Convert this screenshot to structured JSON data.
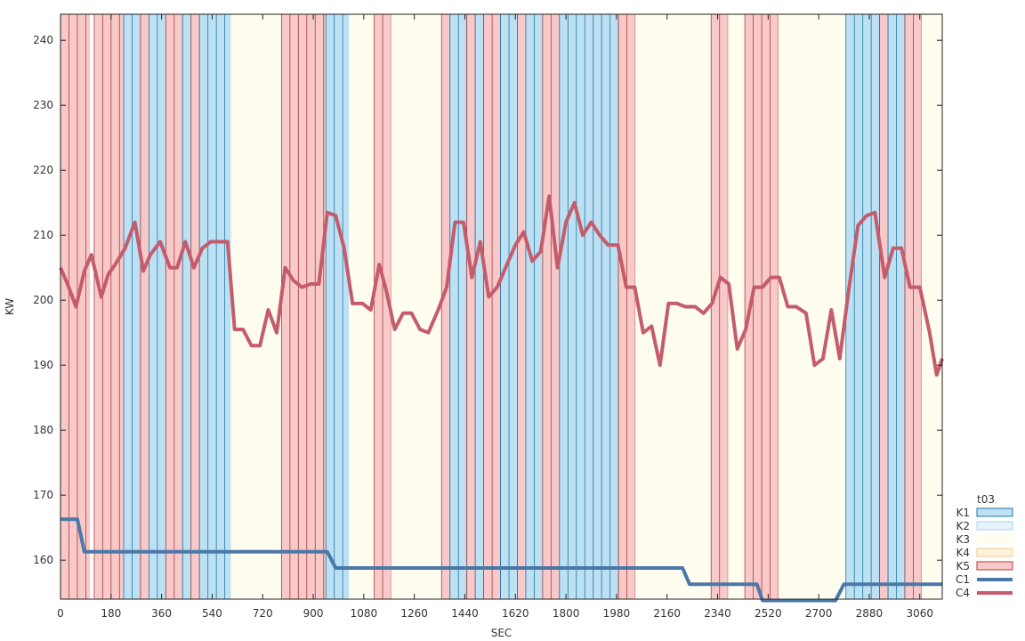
{
  "chart_data": {
    "type": "line",
    "xlabel": "SEC",
    "ylabel": "KW",
    "xlim": [
      0,
      3140
    ],
    "ylim": [
      154,
      244
    ],
    "x_ticks": [
      0,
      180,
      360,
      540,
      720,
      900,
      1080,
      1260,
      1440,
      1620,
      1800,
      1980,
      2160,
      2340,
      2520,
      2700,
      2880,
      3060
    ],
    "y_ticks": [
      160,
      170,
      180,
      190,
      200,
      210,
      220,
      230,
      240
    ],
    "grid": false,
    "legend": {
      "placement": "bottom-right",
      "title": "t03",
      "entries": [
        {
          "name": "K1",
          "kind": "box",
          "fill": "#bde0f2",
          "stroke": "#1e7aa8"
        },
        {
          "name": "K2",
          "kind": "box",
          "fill": "#e6f3fb",
          "stroke": "#a8d2ea"
        },
        {
          "name": "K3",
          "kind": "box",
          "fill": "#fffdf0",
          "stroke": "#fffdf0"
        },
        {
          "name": "K4",
          "kind": "box",
          "fill": "#fdf3dd",
          "stroke": "#f3c98a"
        },
        {
          "name": "K5",
          "kind": "box",
          "fill": "#f8c9c9",
          "stroke": "#b03a3a"
        },
        {
          "name": "C1",
          "kind": "line",
          "color": "#4a78a8"
        },
        {
          "name": "C4",
          "kind": "line",
          "color": "#c45c6c"
        }
      ]
    },
    "bands": [
      {
        "category": "K5",
        "x0": 0,
        "x1": 105
      },
      {
        "category": "K5",
        "x0": 120,
        "x1": 225
      },
      {
        "category": "K1",
        "x0": 225,
        "x1": 285
      },
      {
        "category": "K5",
        "x0": 285,
        "x1": 315
      },
      {
        "category": "K1",
        "x0": 315,
        "x1": 375
      },
      {
        "category": "K5",
        "x0": 375,
        "x1": 435
      },
      {
        "category": "K1",
        "x0": 435,
        "x1": 465
      },
      {
        "category": "K5",
        "x0": 465,
        "x1": 495
      },
      {
        "category": "K1",
        "x0": 495,
        "x1": 607
      },
      {
        "category": "K3",
        "x0": 607,
        "x1": 787
      },
      {
        "category": "K5",
        "x0": 787,
        "x1": 945
      },
      {
        "category": "K1",
        "x0": 945,
        "x1": 1027
      },
      {
        "category": "K3",
        "x0": 1027,
        "x1": 1117
      },
      {
        "category": "K5",
        "x0": 1117,
        "x1": 1177
      },
      {
        "category": "K3",
        "x0": 1177,
        "x1": 1357
      },
      {
        "category": "K5",
        "x0": 1357,
        "x1": 1387
      },
      {
        "category": "K1",
        "x0": 1387,
        "x1": 1447
      },
      {
        "category": "K5",
        "x0": 1447,
        "x1": 1477
      },
      {
        "category": "K1",
        "x0": 1477,
        "x1": 1507
      },
      {
        "category": "K5",
        "x0": 1507,
        "x1": 1567
      },
      {
        "category": "K1",
        "x0": 1567,
        "x1": 1627
      },
      {
        "category": "K5",
        "x0": 1627,
        "x1": 1657
      },
      {
        "category": "K1",
        "x0": 1657,
        "x1": 1717
      },
      {
        "category": "K5",
        "x0": 1717,
        "x1": 1777
      },
      {
        "category": "K1",
        "x0": 1777,
        "x1": 1987
      },
      {
        "category": "K5",
        "x0": 1987,
        "x1": 2047
      },
      {
        "category": "K3",
        "x0": 2047,
        "x1": 2317
      },
      {
        "category": "K5",
        "x0": 2317,
        "x1": 2377
      },
      {
        "category": "K3",
        "x0": 2377,
        "x1": 2437
      },
      {
        "category": "K5",
        "x0": 2437,
        "x1": 2557
      },
      {
        "category": "K3",
        "x0": 2557,
        "x1": 2797
      },
      {
        "category": "K1",
        "x0": 2797,
        "x1": 2917
      },
      {
        "category": "K5",
        "x0": 2917,
        "x1": 2947
      },
      {
        "category": "K1",
        "x0": 2947,
        "x1": 3007
      },
      {
        "category": "K5",
        "x0": 3007,
        "x1": 3067
      },
      {
        "category": "K3",
        "x0": 3067,
        "x1": 3140
      }
    ],
    "series": [
      {
        "name": "C4",
        "color": "#c45c6c",
        "points": [
          [
            0,
            205
          ],
          [
            25,
            202.5
          ],
          [
            55,
            199
          ],
          [
            85,
            204.5
          ],
          [
            110,
            207
          ],
          [
            145,
            200.5
          ],
          [
            170,
            204
          ],
          [
            195,
            205.5
          ],
          [
            230,
            208
          ],
          [
            265,
            212
          ],
          [
            295,
            204.5
          ],
          [
            320,
            207
          ],
          [
            355,
            209
          ],
          [
            390,
            205
          ],
          [
            415,
            205
          ],
          [
            445,
            209
          ],
          [
            475,
            205
          ],
          [
            505,
            208
          ],
          [
            535,
            209
          ],
          [
            565,
            209
          ],
          [
            595,
            209
          ],
          [
            620,
            195.5
          ],
          [
            650,
            195.5
          ],
          [
            680,
            193
          ],
          [
            710,
            193
          ],
          [
            740,
            198.5
          ],
          [
            770,
            195
          ],
          [
            800,
            205
          ],
          [
            830,
            203
          ],
          [
            860,
            202
          ],
          [
            890,
            202.5
          ],
          [
            920,
            202.5
          ],
          [
            950,
            213.5
          ],
          [
            980,
            213
          ],
          [
            1010,
            208
          ],
          [
            1040,
            199.5
          ],
          [
            1075,
            199.5
          ],
          [
            1105,
            198.5
          ],
          [
            1135,
            205.5
          ],
          [
            1160,
            201.5
          ],
          [
            1190,
            195.5
          ],
          [
            1220,
            198
          ],
          [
            1250,
            198
          ],
          [
            1280,
            195.5
          ],
          [
            1310,
            195
          ],
          [
            1345,
            198.5
          ],
          [
            1375,
            202
          ],
          [
            1405,
            212
          ],
          [
            1435,
            212
          ],
          [
            1465,
            203.5
          ],
          [
            1495,
            209
          ],
          [
            1525,
            200.5
          ],
          [
            1555,
            202
          ],
          [
            1590,
            205.5
          ],
          [
            1620,
            208.5
          ],
          [
            1650,
            210.5
          ],
          [
            1680,
            206
          ],
          [
            1710,
            207.5
          ],
          [
            1740,
            216
          ],
          [
            1770,
            205
          ],
          [
            1800,
            212
          ],
          [
            1830,
            215
          ],
          [
            1860,
            210
          ],
          [
            1890,
            212
          ],
          [
            1920,
            210
          ],
          [
            1950,
            208.5
          ],
          [
            1985,
            208.5
          ],
          [
            2015,
            202
          ],
          [
            2045,
            202
          ],
          [
            2075,
            195
          ],
          [
            2105,
            196
          ],
          [
            2135,
            190
          ],
          [
            2165,
            199.5
          ],
          [
            2195,
            199.5
          ],
          [
            2225,
            199
          ],
          [
            2260,
            199
          ],
          [
            2290,
            198
          ],
          [
            2320,
            199.5
          ],
          [
            2350,
            203.5
          ],
          [
            2380,
            202.5
          ],
          [
            2410,
            192.5
          ],
          [
            2440,
            195.5
          ],
          [
            2470,
            202
          ],
          [
            2500,
            202
          ],
          [
            2530,
            203.5
          ],
          [
            2560,
            203.5
          ],
          [
            2590,
            199
          ],
          [
            2620,
            199
          ],
          [
            2655,
            198
          ],
          [
            2685,
            190
          ],
          [
            2715,
            191
          ],
          [
            2745,
            198.5
          ],
          [
            2775,
            191
          ],
          [
            2805,
            201
          ],
          [
            2840,
            211.5
          ],
          [
            2870,
            213
          ],
          [
            2900,
            213.5
          ],
          [
            2935,
            203.5
          ],
          [
            2965,
            208
          ],
          [
            2995,
            208
          ],
          [
            3025,
            202
          ],
          [
            3060,
            202
          ],
          [
            3095,
            195
          ],
          [
            3120,
            188.5
          ],
          [
            3140,
            191
          ]
        ]
      },
      {
        "name": "C1",
        "color": "#4a78a8",
        "points": [
          [
            0,
            166.3
          ],
          [
            60,
            166.3
          ],
          [
            85,
            161.3
          ],
          [
            950,
            161.3
          ],
          [
            980,
            158.8
          ],
          [
            2215,
            158.8
          ],
          [
            2240,
            156.3
          ],
          [
            2480,
            156.3
          ],
          [
            2500,
            153.8
          ],
          [
            2760,
            153.8
          ],
          [
            2790,
            156.3
          ],
          [
            3140,
            156.3
          ]
        ]
      }
    ]
  }
}
